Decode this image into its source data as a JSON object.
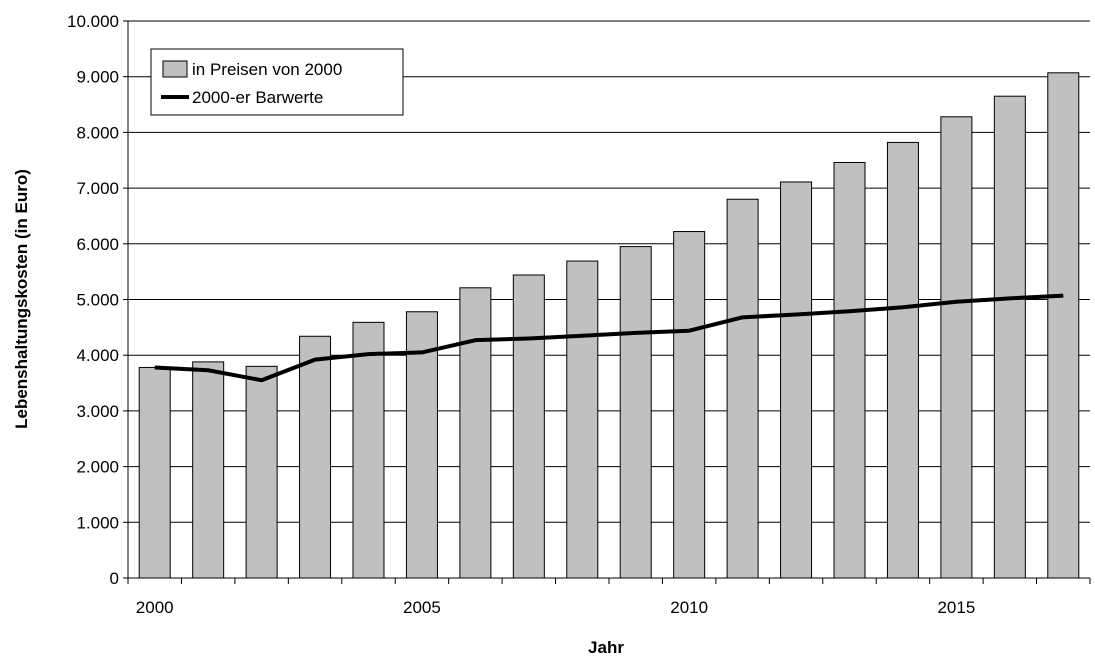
{
  "chart_data": {
    "type": "bar",
    "x": [
      2000,
      2001,
      2002,
      2003,
      2004,
      2005,
      2006,
      2007,
      2008,
      2009,
      2010,
      2011,
      2012,
      2013,
      2014,
      2015,
      2016,
      2017
    ],
    "series": [
      {
        "name": "in Preisen von 2000",
        "type": "bar",
        "color": "#c0c0c0",
        "values": [
          3780,
          3880,
          3800,
          4340,
          4590,
          4780,
          5210,
          5440,
          5690,
          5950,
          6220,
          6800,
          7110,
          7460,
          7820,
          8280,
          8650,
          9070
        ]
      },
      {
        "name": "2000-er Barwerte",
        "type": "line",
        "color": "#000000",
        "values": [
          3780,
          3730,
          3550,
          3920,
          4020,
          4050,
          4270,
          4300,
          4350,
          4400,
          4440,
          4680,
          4730,
          4790,
          4860,
          4960,
          5020,
          5070
        ]
      }
    ],
    "xlabel": "Jahr",
    "ylabel": "Lebenshaltungskosten (in Euro)",
    "ylim": [
      0,
      10000
    ],
    "yticks": [
      0,
      1000,
      2000,
      3000,
      4000,
      5000,
      6000,
      7000,
      8000,
      9000,
      10000
    ],
    "ytick_labels": [
      "0",
      "1.000",
      "2.000",
      "3.000",
      "4.000",
      "5.000",
      "6.000",
      "7.000",
      "8.000",
      "9.000",
      "10.000"
    ],
    "xtick_labels": [
      "2000",
      "2005",
      "2010",
      "2015"
    ],
    "grid": "horizontal",
    "legend_position": "top-left"
  }
}
